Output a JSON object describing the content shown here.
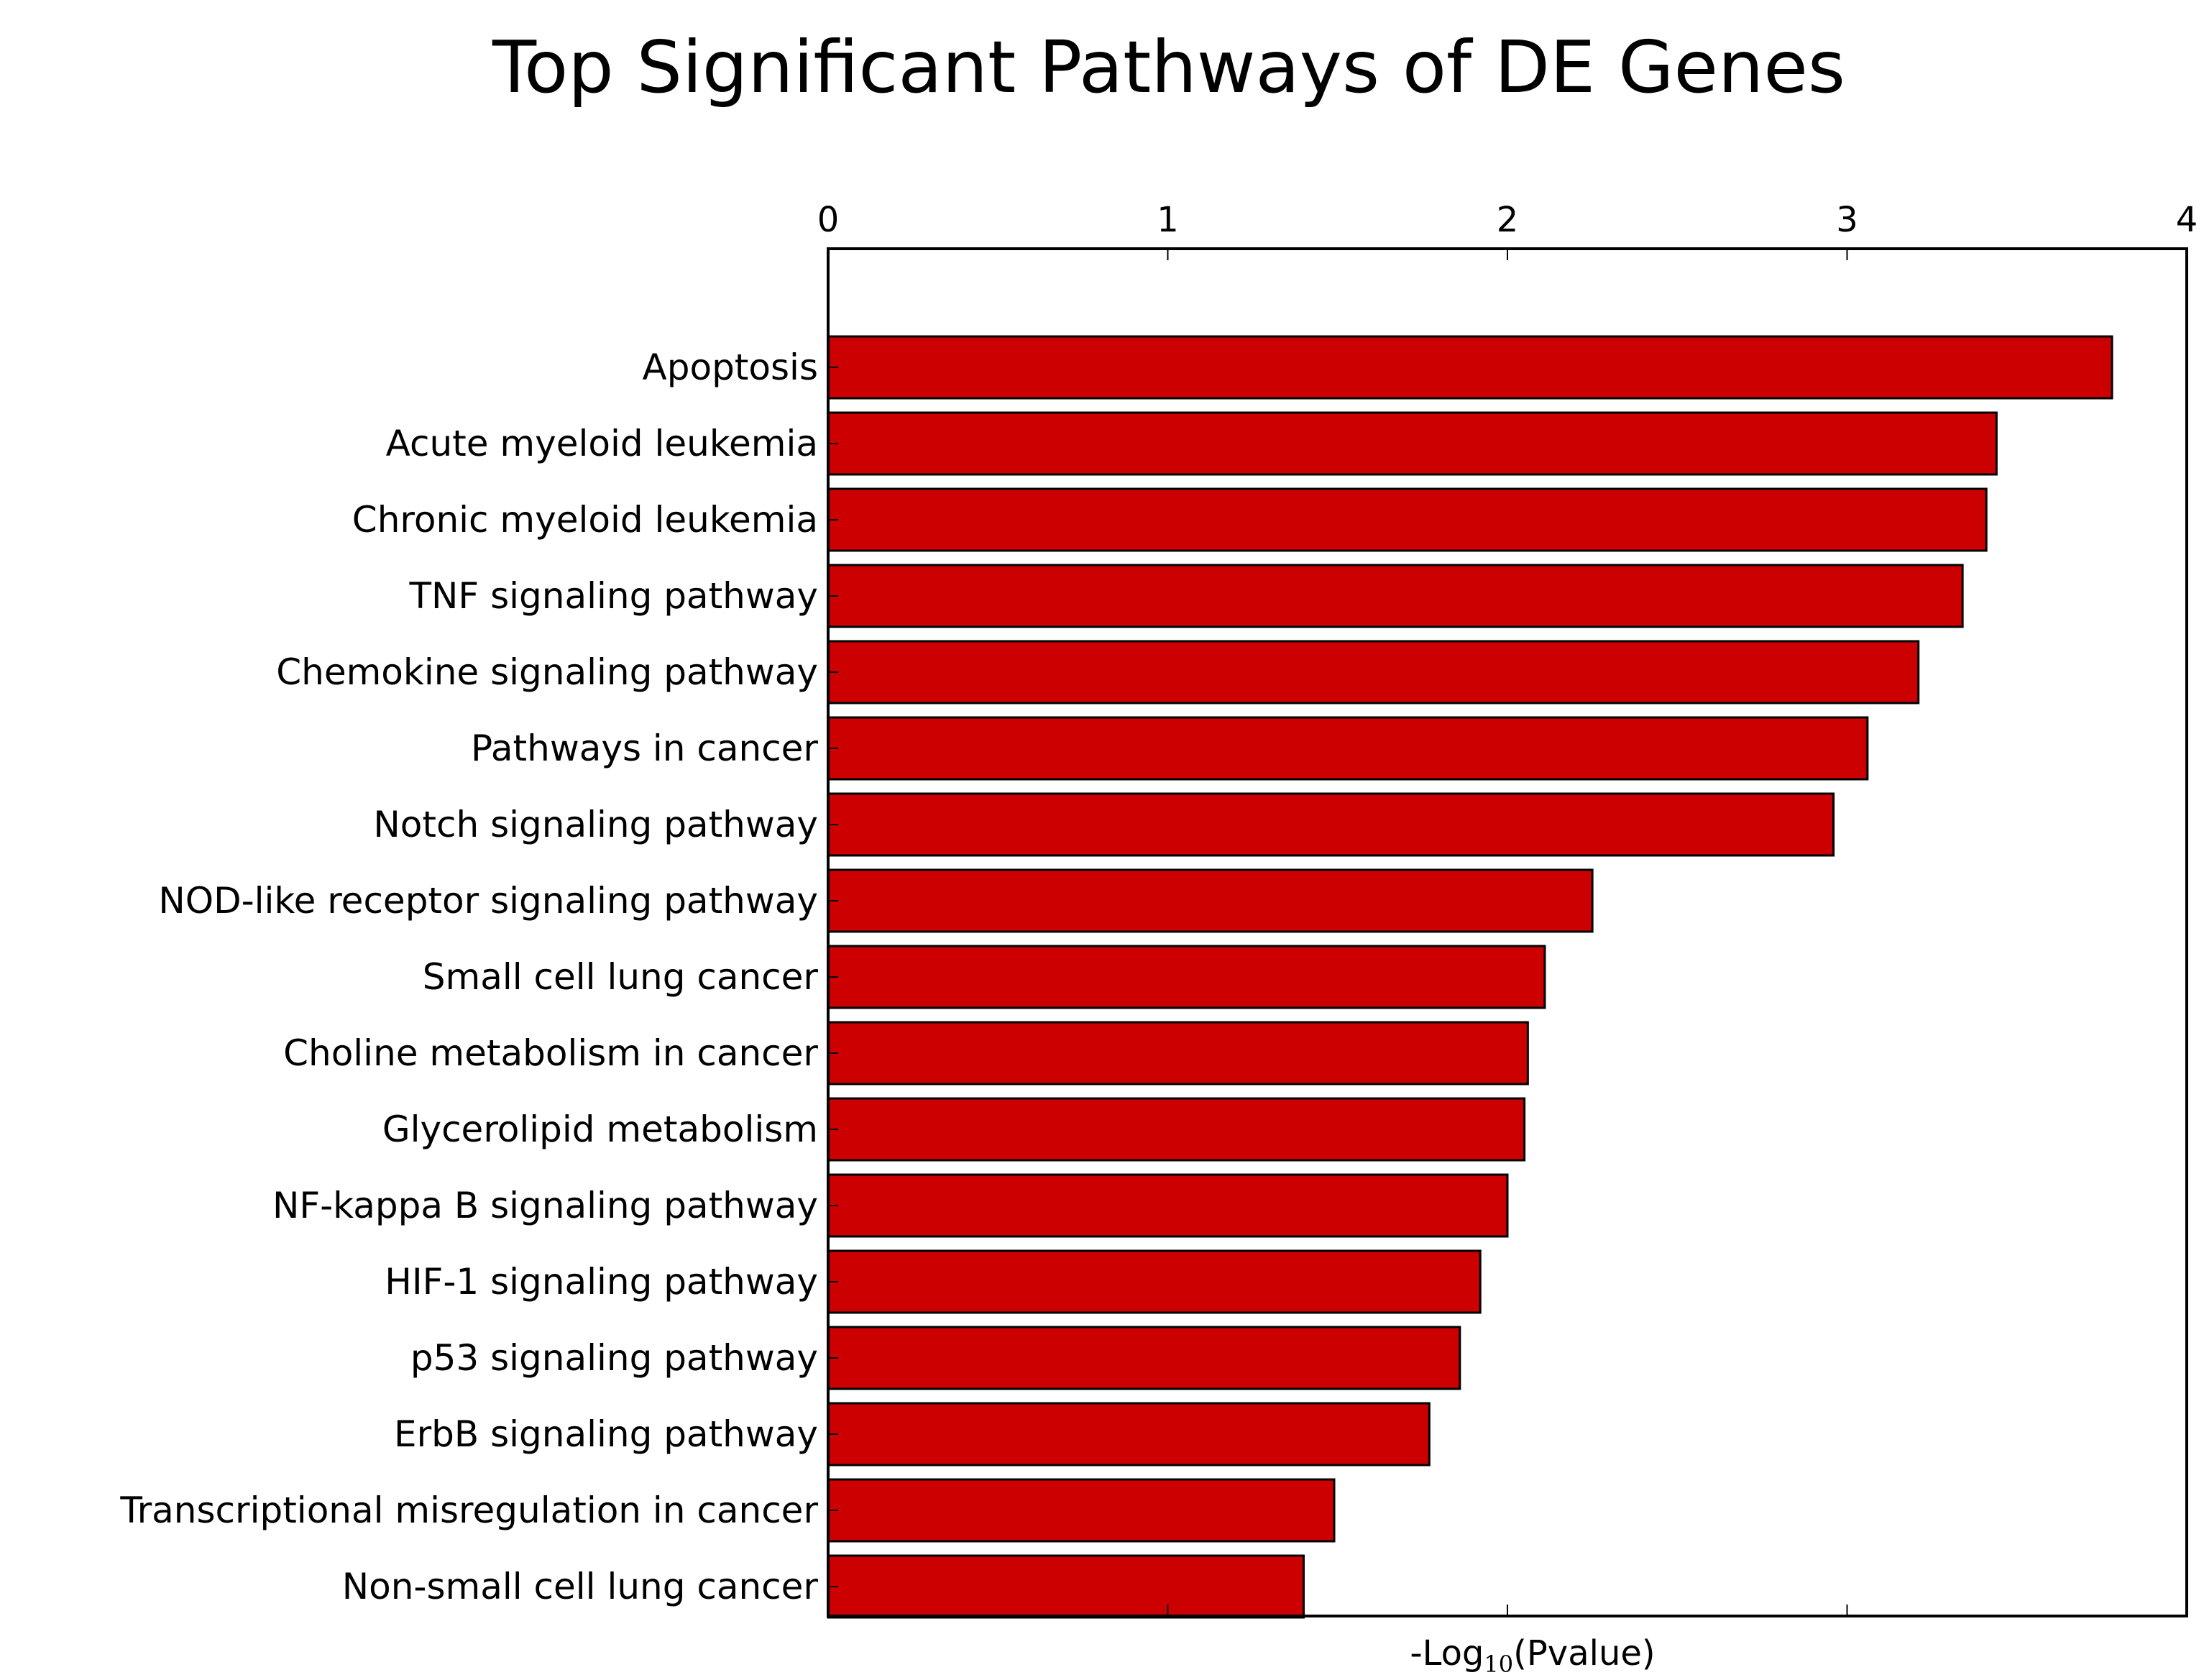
{
  "chart_data": {
    "type": "bar",
    "orientation": "horizontal",
    "title": "Top Significant Pathways of DE Genes",
    "xlabel": {
      "prefix": "-Log",
      "subscript": "10",
      "suffix": "(Pvalue)"
    },
    "xlim": [
      0,
      4
    ],
    "xticks": [
      "0",
      "1",
      "2",
      "3",
      "4"
    ],
    "x_axis_position": "top",
    "grid": false,
    "bar_color": "#cc0000",
    "categories": [
      "Apoptosis",
      "Acute myeloid leukemia",
      "Chronic myeloid leukemia",
      "TNF signaling pathway",
      "Chemokine signaling pathway",
      "Pathways in cancer",
      "Notch signaling pathway",
      "NOD-like receptor signaling pathway",
      "Small cell lung cancer",
      "Choline metabolism in cancer",
      "Glycerolipid metabolism",
      "NF-kappa B signaling pathway",
      "HIF-1 signaling pathway",
      "p53 signaling pathway",
      "ErbB signaling pathway",
      "Transcriptional misregulation in cancer",
      "Non-small cell lung cancer"
    ],
    "values": [
      3.78,
      3.44,
      3.41,
      3.34,
      3.21,
      3.06,
      2.96,
      2.25,
      2.11,
      2.06,
      2.05,
      2.0,
      1.92,
      1.86,
      1.77,
      1.49,
      1.4
    ]
  }
}
